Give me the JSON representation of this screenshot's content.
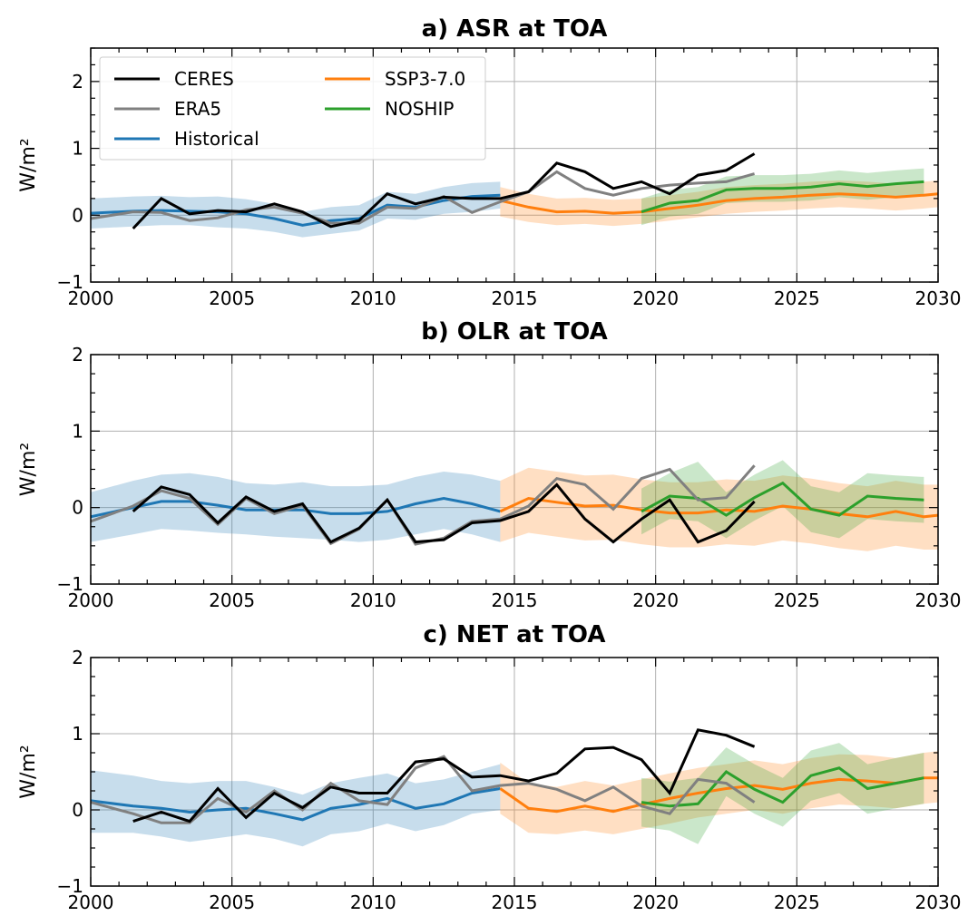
{
  "chart_data": [
    {
      "panel": "a",
      "type": "line",
      "title": "a)  ASR at TOA",
      "ylabel": "W/m²",
      "xlim": [
        2000,
        2030
      ],
      "ylim": [
        -1,
        2.5
      ],
      "xticks": [
        2000,
        2005,
        2010,
        2015,
        2020,
        2025,
        2030
      ],
      "yticks": [
        -1,
        0,
        1,
        2
      ],
      "grid": true,
      "legend": {
        "placement": "top-left",
        "entries": [
          {
            "label": "CERES",
            "color": "#000000"
          },
          {
            "label": "SSP3-7.0",
            "color": "#ff7f0e"
          },
          {
            "label": "ERA5",
            "color": "#808080"
          },
          {
            "label": "NOSHIP",
            "color": "#2ca02c"
          },
          {
            "label": "Historical",
            "color": "#1f77b4"
          }
        ]
      },
      "series": [
        {
          "name": "CERES",
          "color": "#000000",
          "x": [
            2001.5,
            2002.5,
            2003.5,
            2004.5,
            2005.5,
            2006.5,
            2007.5,
            2008.5,
            2009.5,
            2010.5,
            2011.5,
            2012.5,
            2013.5,
            2014.5,
            2015.5,
            2016.5,
            2017.5,
            2018.5,
            2019.5,
            2020.5,
            2021.5,
            2022.5,
            2023.5
          ],
          "y": [
            -0.2,
            0.25,
            0.02,
            0.07,
            0.05,
            0.17,
            0.05,
            -0.17,
            -0.08,
            0.32,
            0.17,
            0.27,
            0.25,
            0.25,
            0.35,
            0.78,
            0.65,
            0.4,
            0.5,
            0.32,
            0.6,
            0.67,
            0.92
          ]
        },
        {
          "name": "ERA5",
          "color": "#808080",
          "x": [
            2000,
            2001.5,
            2002.5,
            2003.5,
            2004.5,
            2005.5,
            2006.5,
            2007.5,
            2008.5,
            2009.5,
            2010.5,
            2011.5,
            2012.5,
            2013.5,
            2014.5,
            2015.5,
            2016.5,
            2017.5,
            2018.5,
            2019.5,
            2020.5,
            2021.5,
            2022.5,
            2023.5
          ],
          "y": [
            -0.05,
            0.05,
            0.04,
            -0.08,
            -0.04,
            0.08,
            0.12,
            0.03,
            -0.12,
            -0.12,
            0.12,
            0.1,
            0.28,
            0.04,
            0.2,
            0.35,
            0.65,
            0.4,
            0.3,
            0.4,
            0.45,
            0.48,
            0.5,
            0.62
          ]
        },
        {
          "name": "Historical",
          "color": "#1f77b4",
          "x": [
            2000,
            2001.5,
            2002.5,
            2003.5,
            2004.5,
            2005.5,
            2006.5,
            2007.5,
            2008.5,
            2009.5,
            2010.5,
            2011.5,
            2012.5,
            2013.5,
            2014.5
          ],
          "y": [
            0.03,
            0.06,
            0.07,
            0.06,
            0.05,
            0.02,
            -0.05,
            -0.15,
            -0.08,
            -0.05,
            0.15,
            0.12,
            0.22,
            0.28,
            0.3
          ],
          "band_lo": [
            -0.2,
            -0.17,
            -0.15,
            -0.15,
            -0.18,
            -0.2,
            -0.25,
            -0.33,
            -0.28,
            -0.23,
            -0.05,
            -0.07,
            0.02,
            0.05,
            0.1
          ],
          "band_hi": [
            0.25,
            0.28,
            0.29,
            0.27,
            0.28,
            0.24,
            0.17,
            0.05,
            0.12,
            0.15,
            0.35,
            0.32,
            0.42,
            0.48,
            0.5
          ]
        },
        {
          "name": "SSP3-7.0",
          "color": "#ff7f0e",
          "x": [
            2014.5,
            2015.5,
            2016.5,
            2017.5,
            2018.5,
            2019.5,
            2020.5,
            2021.5,
            2022.5,
            2023.5,
            2024.5,
            2025.5,
            2026.5,
            2027.5,
            2028.5,
            2029.5,
            2030
          ],
          "y": [
            0.22,
            0.12,
            0.05,
            0.06,
            0.03,
            0.05,
            0.1,
            0.15,
            0.22,
            0.25,
            0.27,
            0.3,
            0.32,
            0.3,
            0.27,
            0.3,
            0.32
          ],
          "band_lo": [
            -0.02,
            -0.1,
            -0.15,
            -0.13,
            -0.16,
            -0.13,
            -0.08,
            -0.03,
            0.02,
            0.05,
            0.07,
            0.1,
            0.12,
            0.1,
            0.07,
            0.1,
            0.12
          ],
          "band_hi": [
            0.42,
            0.32,
            0.25,
            0.26,
            0.23,
            0.25,
            0.3,
            0.35,
            0.42,
            0.45,
            0.47,
            0.5,
            0.52,
            0.5,
            0.47,
            0.5,
            0.52
          ]
        },
        {
          "name": "NOSHIP",
          "color": "#2ca02c",
          "x": [
            2019.5,
            2020.5,
            2021.5,
            2022.5,
            2023.5,
            2024.5,
            2025.5,
            2026.5,
            2027.5,
            2028.5,
            2029.5
          ],
          "y": [
            0.05,
            0.18,
            0.22,
            0.38,
            0.4,
            0.4,
            0.42,
            0.47,
            0.43,
            0.47,
            0.5
          ],
          "band_lo": [
            -0.15,
            -0.02,
            0.02,
            0.18,
            0.2,
            0.2,
            0.22,
            0.27,
            0.23,
            0.27,
            0.3
          ],
          "band_hi": [
            0.25,
            0.38,
            0.42,
            0.58,
            0.6,
            0.6,
            0.62,
            0.67,
            0.63,
            0.67,
            0.7
          ]
        }
      ]
    },
    {
      "panel": "b",
      "type": "line",
      "title": "b)  OLR at TOA",
      "ylabel": "W/m²",
      "xlim": [
        2000,
        2030
      ],
      "ylim": [
        -1,
        2
      ],
      "xticks": [
        2000,
        2005,
        2010,
        2015,
        2020,
        2025,
        2030
      ],
      "yticks": [
        -1,
        0,
        1,
        2
      ],
      "grid": true,
      "series": [
        {
          "name": "CERES",
          "color": "#000000",
          "x": [
            2001.5,
            2002.5,
            2003.5,
            2004.5,
            2005.5,
            2006.5,
            2007.5,
            2008.5,
            2009.5,
            2010.5,
            2011.5,
            2012.5,
            2013.5,
            2014.5,
            2015.5,
            2016.5,
            2017.5,
            2018.5,
            2019.5,
            2020.5,
            2021.5,
            2022.5,
            2023.5
          ],
          "y": [
            -0.05,
            0.27,
            0.17,
            -0.2,
            0.14,
            -0.05,
            0.05,
            -0.45,
            -0.27,
            0.1,
            -0.45,
            -0.42,
            -0.2,
            -0.17,
            -0.05,
            0.3,
            -0.15,
            -0.45,
            -0.15,
            0.1,
            -0.45,
            -0.3,
            0.08
          ]
        },
        {
          "name": "ERA5",
          "color": "#808080",
          "x": [
            2000,
            2001.5,
            2002.5,
            2003.5,
            2004.5,
            2005.5,
            2006.5,
            2007.5,
            2008.5,
            2009.5,
            2010.5,
            2011.5,
            2012.5,
            2013.5,
            2014.5,
            2015.5,
            2016.5,
            2017.5,
            2018.5,
            2019.5,
            2020.5,
            2021.5,
            2022.5,
            2023.5
          ],
          "y": [
            -0.18,
            0.02,
            0.22,
            0.12,
            -0.22,
            0.12,
            -0.08,
            0.03,
            -0.47,
            -0.28,
            0.1,
            -0.48,
            -0.4,
            -0.18,
            -0.15,
            0.02,
            0.38,
            0.3,
            -0.02,
            0.38,
            0.5,
            0.1,
            0.13,
            0.55
          ]
        },
        {
          "name": "Historical",
          "color": "#1f77b4",
          "x": [
            2000,
            2001.5,
            2002.5,
            2003.5,
            2004.5,
            2005.5,
            2006.5,
            2007.5,
            2008.5,
            2009.5,
            2010.5,
            2011.5,
            2012.5,
            2013.5,
            2014.5
          ],
          "y": [
            -0.12,
            0.0,
            0.08,
            0.08,
            0.03,
            -0.03,
            -0.03,
            -0.03,
            -0.08,
            -0.08,
            -0.05,
            0.05,
            0.12,
            0.05,
            -0.05
          ],
          "band_lo": [
            -0.45,
            -0.35,
            -0.28,
            -0.3,
            -0.33,
            -0.35,
            -0.38,
            -0.4,
            -0.42,
            -0.45,
            -0.42,
            -0.35,
            -0.28,
            -0.35,
            -0.45
          ],
          "band_hi": [
            0.2,
            0.35,
            0.43,
            0.45,
            0.4,
            0.32,
            0.3,
            0.33,
            0.28,
            0.28,
            0.3,
            0.4,
            0.47,
            0.43,
            0.35
          ]
        },
        {
          "name": "SSP3-7.0",
          "color": "#ff7f0e",
          "x": [
            2014.5,
            2015.5,
            2016.5,
            2017.5,
            2018.5,
            2019.5,
            2020.5,
            2021.5,
            2022.5,
            2023.5,
            2024.5,
            2025.5,
            2026.5,
            2027.5,
            2028.5,
            2029.5,
            2030
          ],
          "y": [
            -0.05,
            0.12,
            0.07,
            0.02,
            0.03,
            -0.03,
            -0.07,
            -0.07,
            -0.03,
            -0.05,
            0.02,
            -0.02,
            -0.08,
            -0.12,
            -0.05,
            -0.12,
            -0.1
          ],
          "band_lo": [
            -0.45,
            -0.33,
            -0.38,
            -0.43,
            -0.42,
            -0.48,
            -0.52,
            -0.52,
            -0.48,
            -0.5,
            -0.43,
            -0.47,
            -0.53,
            -0.57,
            -0.5,
            -0.55,
            -0.55
          ],
          "band_hi": [
            0.35,
            0.52,
            0.47,
            0.42,
            0.43,
            0.37,
            0.33,
            0.33,
            0.37,
            0.35,
            0.42,
            0.38,
            0.32,
            0.28,
            0.35,
            0.3,
            0.3
          ]
        },
        {
          "name": "NOSHIP",
          "color": "#2ca02c",
          "x": [
            2019.5,
            2020.5,
            2021.5,
            2022.5,
            2023.5,
            2024.5,
            2025.5,
            2026.5,
            2027.5,
            2028.5,
            2029.5
          ],
          "y": [
            -0.05,
            0.15,
            0.12,
            -0.1,
            0.13,
            0.32,
            -0.02,
            -0.1,
            0.15,
            0.12,
            0.1
          ],
          "band_lo": [
            -0.35,
            -0.15,
            -0.18,
            -0.4,
            -0.17,
            0.02,
            -0.32,
            -0.4,
            -0.15,
            -0.18,
            -0.2
          ],
          "band_hi": [
            0.25,
            0.45,
            0.6,
            0.2,
            0.43,
            0.62,
            0.28,
            0.2,
            0.45,
            0.42,
            0.4
          ]
        }
      ]
    },
    {
      "panel": "c",
      "type": "line",
      "title": "c)  NET at TOA",
      "ylabel": "W/m²",
      "xlim": [
        2000,
        2030
      ],
      "ylim": [
        -1,
        2
      ],
      "xticks": [
        2000,
        2005,
        2010,
        2015,
        2020,
        2025,
        2030
      ],
      "yticks": [
        -1,
        0,
        1,
        2
      ],
      "grid": true,
      "series": [
        {
          "name": "CERES",
          "color": "#000000",
          "x": [
            2001.5,
            2002.5,
            2003.5,
            2004.5,
            2005.5,
            2006.5,
            2007.5,
            2008.5,
            2009.5,
            2010.5,
            2011.5,
            2012.5,
            2013.5,
            2014.5,
            2015.5,
            2016.5,
            2017.5,
            2018.5,
            2019.5,
            2020.5,
            2021.5,
            2022.5,
            2023.5
          ],
          "y": [
            -0.15,
            -0.03,
            -0.15,
            0.28,
            -0.1,
            0.22,
            0.03,
            0.3,
            0.22,
            0.22,
            0.63,
            0.67,
            0.43,
            0.45,
            0.38,
            0.48,
            0.8,
            0.82,
            0.66,
            0.22,
            1.05,
            0.98,
            0.83
          ]
        },
        {
          "name": "ERA5",
          "color": "#808080",
          "x": [
            2000,
            2001.5,
            2002.5,
            2003.5,
            2004.5,
            2005.5,
            2006.5,
            2007.5,
            2008.5,
            2009.5,
            2010.5,
            2011.5,
            2012.5,
            2013.5,
            2014.5,
            2015.5,
            2016.5,
            2017.5,
            2018.5,
            2019.5,
            2020.5,
            2021.5,
            2022.5,
            2023.5
          ],
          "y": [
            0.1,
            -0.05,
            -0.17,
            -0.17,
            0.15,
            -0.03,
            0.25,
            0.0,
            0.35,
            0.12,
            0.07,
            0.55,
            0.7,
            0.25,
            0.32,
            0.35,
            0.27,
            0.12,
            0.3,
            0.05,
            -0.05,
            0.4,
            0.35,
            0.1
          ]
        },
        {
          "name": "Historical",
          "color": "#1f77b4",
          "x": [
            2000,
            2001.5,
            2002.5,
            2003.5,
            2004.5,
            2005.5,
            2006.5,
            2007.5,
            2008.5,
            2009.5,
            2010.5,
            2011.5,
            2012.5,
            2013.5,
            2014.5
          ],
          "y": [
            0.12,
            0.05,
            0.02,
            -0.03,
            0.0,
            0.02,
            -0.05,
            -0.13,
            0.02,
            0.07,
            0.15,
            0.02,
            0.08,
            0.22,
            0.28
          ],
          "band_lo": [
            -0.3,
            -0.3,
            -0.35,
            -0.42,
            -0.37,
            -0.32,
            -0.38,
            -0.48,
            -0.32,
            -0.28,
            -0.18,
            -0.28,
            -0.2,
            -0.05,
            0.0
          ],
          "band_hi": [
            0.52,
            0.45,
            0.38,
            0.35,
            0.38,
            0.38,
            0.3,
            0.2,
            0.35,
            0.42,
            0.48,
            0.35,
            0.4,
            0.5,
            0.6
          ]
        },
        {
          "name": "SSP3-7.0",
          "color": "#ff7f0e",
          "x": [
            2014.5,
            2015.5,
            2016.5,
            2017.5,
            2018.5,
            2019.5,
            2020.5,
            2021.5,
            2022.5,
            2023.5,
            2024.5,
            2025.5,
            2026.5,
            2027.5,
            2028.5,
            2029.5,
            2030
          ],
          "y": [
            0.28,
            0.02,
            -0.02,
            0.05,
            -0.02,
            0.07,
            0.15,
            0.22,
            0.28,
            0.32,
            0.27,
            0.35,
            0.4,
            0.38,
            0.35,
            0.42,
            0.42
          ],
          "band_lo": [
            -0.05,
            -0.3,
            -0.32,
            -0.27,
            -0.32,
            -0.25,
            -0.18,
            -0.1,
            -0.05,
            0.0,
            -0.05,
            0.02,
            0.07,
            0.05,
            0.02,
            0.08,
            0.1
          ],
          "band_hi": [
            0.62,
            0.35,
            0.3,
            0.38,
            0.32,
            0.4,
            0.48,
            0.55,
            0.6,
            0.65,
            0.6,
            0.68,
            0.73,
            0.72,
            0.68,
            0.75,
            0.77
          ]
        },
        {
          "name": "NOSHIP",
          "color": "#2ca02c",
          "x": [
            2019.5,
            2020.5,
            2021.5,
            2022.5,
            2023.5,
            2024.5,
            2025.5,
            2026.5,
            2027.5,
            2028.5,
            2029.5
          ],
          "y": [
            0.1,
            0.05,
            0.08,
            0.5,
            0.27,
            0.1,
            0.45,
            0.55,
            0.28,
            0.35,
            0.42
          ],
          "band_lo": [
            -0.22,
            -0.27,
            -0.45,
            0.18,
            -0.05,
            -0.22,
            0.12,
            0.22,
            -0.05,
            0.02,
            0.08
          ],
          "band_hi": [
            0.42,
            0.37,
            0.42,
            0.82,
            0.6,
            0.42,
            0.78,
            0.88,
            0.6,
            0.68,
            0.75
          ]
        }
      ]
    }
  ]
}
